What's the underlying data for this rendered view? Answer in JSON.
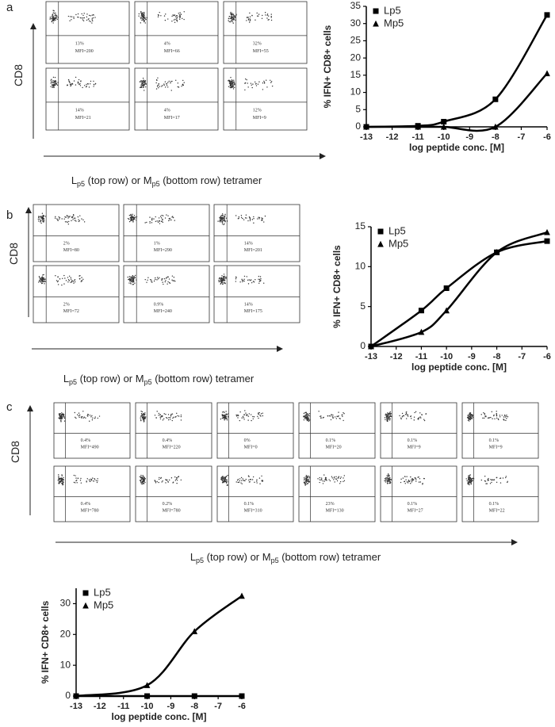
{
  "panels": [
    {
      "label": "a",
      "y_axis": "CD8",
      "x_axis": [
        "L",
        "p5",
        " (top row) or M",
        "p5",
        " (bottom row) tetramer"
      ],
      "plots": [
        [
          "13%",
          "MFI=200"
        ],
        [
          "4%",
          "MFI=66"
        ],
        [
          "32%",
          "MFI=55"
        ],
        [
          "14%",
          "MFI=21"
        ],
        [
          "4%",
          "MFI=17"
        ],
        [
          "12%",
          "MFI=9"
        ]
      ]
    },
    {
      "label": "b",
      "y_axis": "CD8",
      "x_axis": [
        "L",
        "p5",
        " (top row) or M",
        "p5",
        " (bottom row) tetramer"
      ],
      "plots": [
        [
          "2%",
          "MFI=80"
        ],
        [
          "1%",
          "MFI=290"
        ],
        [
          "14%",
          "MFI=201"
        ],
        [
          "2%",
          "MFI=72"
        ],
        [
          "0.9%",
          "MFI=240"
        ],
        [
          "14%",
          "MFI=175"
        ]
      ]
    },
    {
      "label": "c",
      "y_axis": "CD8",
      "x_axis": [
        "L",
        "p5",
        " (top row) or M",
        "p5",
        " (bottom row) tetramer"
      ],
      "plots": [
        [
          "0.4%",
          "MFI=490"
        ],
        [
          "0.4%",
          "MFI=220"
        ],
        [
          "0%",
          "MFI=0"
        ],
        [
          "0.1%",
          "MFI=20"
        ],
        [
          "0.1%",
          "MFI=9"
        ],
        [
          "0.1%",
          "MFI=9"
        ],
        [
          "0.4%",
          "MFI=780"
        ],
        [
          "0.2%",
          "MFI=780"
        ],
        [
          "0.1%",
          "MFI=310"
        ],
        [
          "23%",
          "MFI=130"
        ],
        [
          "0.1%",
          "MFI=27"
        ],
        [
          "0.1%",
          "MFI=22"
        ]
      ]
    }
  ],
  "chart_data": [
    {
      "type": "line",
      "x_label": "log peptide conc. [M]",
      "y_label": "% IFN+ CD8+ cells",
      "legend": "upper left",
      "x": [
        -13,
        -11,
        -10,
        -8,
        -6
      ],
      "xlim": [
        -13,
        -6
      ],
      "xticks": [
        -13,
        -12,
        -11,
        -10,
        -9,
        -8,
        -7,
        -6
      ],
      "ylim": [
        0,
        35
      ],
      "yticks": [
        0,
        5,
        10,
        15,
        20,
        25,
        30,
        35
      ],
      "series": [
        {
          "name": "Lp5",
          "color": "#000000",
          "marker": "square",
          "values": [
            0,
            0.3,
            1.5,
            8,
            32.5
          ]
        },
        {
          "name": "Mp5",
          "color": "#000000",
          "marker": "triangle",
          "values": [
            0,
            0,
            0,
            0,
            15.5
          ]
        }
      ]
    },
    {
      "type": "line",
      "x_label": "log peptide conc. [M]",
      "y_label": "% IFN+ CD8+ cells",
      "legend": "upper left",
      "x": [
        -13,
        -11,
        -10,
        -8,
        -6
      ],
      "xlim": [
        -13,
        -6
      ],
      "xticks": [
        -13,
        -12,
        -11,
        -10,
        -9,
        -8,
        -7,
        -6
      ],
      "ylim": [
        0,
        15
      ],
      "yticks": [
        0,
        5,
        10,
        15
      ],
      "series": [
        {
          "name": "Lp5",
          "color": "#000000",
          "marker": "square",
          "values": [
            0,
            4.5,
            7.3,
            11.8,
            13.2
          ]
        },
        {
          "name": "Mp5",
          "color": "#000000",
          "marker": "triangle",
          "values": [
            0,
            1.8,
            4.5,
            11.8,
            14.3
          ]
        }
      ]
    },
    {
      "type": "line",
      "x_label": "log peptide conc. [M]",
      "y_label": "% IFN+ CD8+ cells",
      "legend": "upper left",
      "x": [
        -13,
        -10,
        -8,
        -6
      ],
      "xlim": [
        -13,
        -6
      ],
      "xticks": [
        -13,
        -12,
        -11,
        -10,
        -9,
        -8,
        -7,
        -6
      ],
      "ylim": [
        0,
        35
      ],
      "yticks": [
        0,
        10,
        20,
        30
      ],
      "series": [
        {
          "name": "Lp5",
          "color": "#000000",
          "marker": "square",
          "values": [
            0,
            0,
            0,
            0
          ]
        },
        {
          "name": "Mp5",
          "color": "#000000",
          "marker": "triangle",
          "values": [
            0,
            3.5,
            21,
            32.5
          ]
        }
      ]
    }
  ]
}
